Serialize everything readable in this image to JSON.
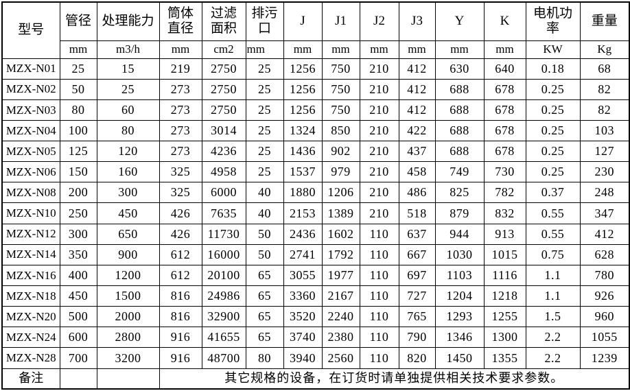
{
  "table": {
    "header": {
      "columns": [
        {
          "label": "型号",
          "unit": ""
        },
        {
          "label": "管径",
          "unit": "mm"
        },
        {
          "label": "处理能力",
          "unit": "m3/h"
        },
        {
          "label": "筒体直径",
          "unit": "mm"
        },
        {
          "label": "过滤面积",
          "unit": "cm2"
        },
        {
          "label": "排污口",
          "unit": "mm"
        },
        {
          "label": "J",
          "unit": "mm"
        },
        {
          "label": "J1",
          "unit": "mm"
        },
        {
          "label": "J2",
          "unit": "mm"
        },
        {
          "label": "J3",
          "unit": "mm"
        },
        {
          "label": "Y",
          "unit": "mm"
        },
        {
          "label": "K",
          "unit": "mm"
        },
        {
          "label": "电机功率",
          "unit": "KW"
        },
        {
          "label": "重量",
          "unit": "Kg"
        }
      ]
    },
    "rows": [
      [
        "MZX-N01",
        "25",
        "15",
        "219",
        "2750",
        "25",
        "1256",
        "750",
        "210",
        "412",
        "630",
        "640",
        "0.18",
        "68"
      ],
      [
        "MZX-N02",
        "50",
        "25",
        "273",
        "2750",
        "25",
        "1256",
        "750",
        "210",
        "412",
        "688",
        "678",
        "0.25",
        "82"
      ],
      [
        "MZX-N03",
        "80",
        "60",
        "273",
        "2750",
        "25",
        "1256",
        "750",
        "210",
        "412",
        "688",
        "678",
        "0.25",
        "82"
      ],
      [
        "MZX-N04",
        "100",
        "80",
        "273",
        "3014",
        "25",
        "1324",
        "850",
        "210",
        "422",
        "688",
        "678",
        "0.25",
        "103"
      ],
      [
        "MZX-N05",
        "125",
        "120",
        "273",
        "4236",
        "25",
        "1436",
        "902",
        "210",
        "437",
        "688",
        "678",
        "0.25",
        "127"
      ],
      [
        "MZX-N06",
        "150",
        "160",
        "325",
        "4958",
        "25",
        "1537",
        "979",
        "210",
        "458",
        "749",
        "730",
        "0.25",
        "230"
      ],
      [
        "MZX-N08",
        "200",
        "300",
        "325",
        "6000",
        "40",
        "1880",
        "1206",
        "210",
        "486",
        "825",
        "782",
        "0.37",
        "248"
      ],
      [
        "MZX-N10",
        "250",
        "450",
        "426",
        "7635",
        "40",
        "2153",
        "1389",
        "210",
        "518",
        "879",
        "832",
        "0.55",
        "347"
      ],
      [
        "MZX-N12",
        "300",
        "650",
        "426",
        "11730",
        "50",
        "2436",
        "1602",
        "110",
        "637",
        "944",
        "913",
        "0.55",
        "412"
      ],
      [
        "MZX-N14",
        "350",
        "900",
        "612",
        "16000",
        "50",
        "2741",
        "1792",
        "110",
        "667",
        "1030",
        "1015",
        "0.75",
        "628"
      ],
      [
        "MZX-N16",
        "400",
        "1200",
        "612",
        "20100",
        "65",
        "3055",
        "1977",
        "110",
        "697",
        "1103",
        "1116",
        "1.1",
        "780"
      ],
      [
        "MZX-N18",
        "450",
        "1500",
        "816",
        "24986",
        "65",
        "3360",
        "2167",
        "110",
        "727",
        "1204",
        "1218",
        "1.1",
        "926"
      ],
      [
        "MZX-N20",
        "500",
        "2000",
        "816",
        "32900",
        "65",
        "3520",
        "2240",
        "110",
        "765",
        "1293",
        "1255",
        "1.5",
        "960"
      ],
      [
        "MZX-N24",
        "600",
        "2800",
        "916",
        "41655",
        "65",
        "3740",
        "2380",
        "110",
        "790",
        "1346",
        "1300",
        "2.2",
        "1055"
      ],
      [
        "MZX-N28",
        "700",
        "3200",
        "916",
        "48700",
        "80",
        "3940",
        "2560",
        "110",
        "820",
        "1450",
        "1355",
        "2.2",
        "1239"
      ]
    ],
    "footer": {
      "label": "备注",
      "note": "其它规格的设备，在订货时请单独提供相关技术要求参数。"
    }
  }
}
